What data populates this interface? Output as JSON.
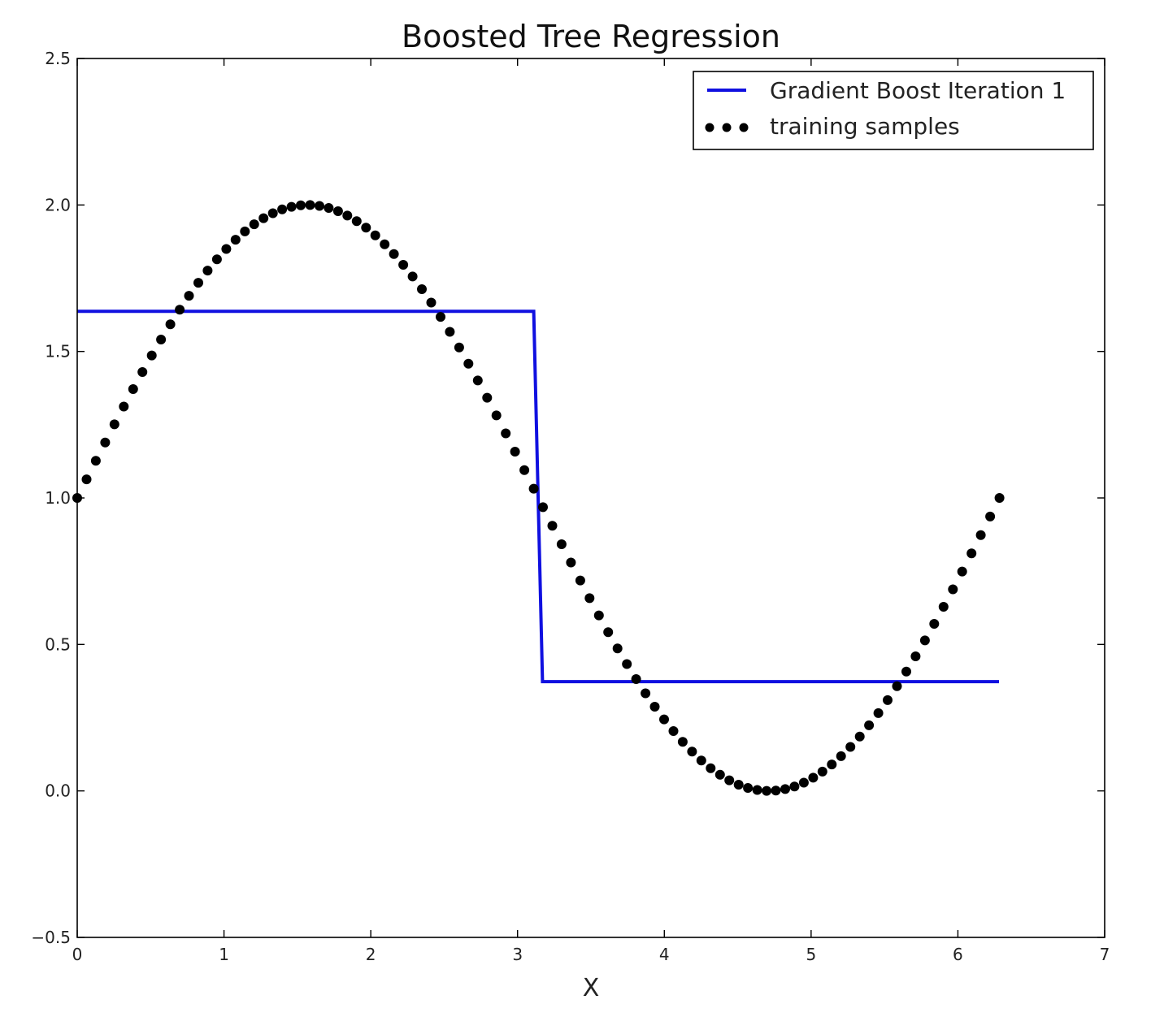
{
  "chart_data": {
    "type": "line",
    "title": "Boosted Tree Regression",
    "xlabel": "X",
    "ylabel": "",
    "xlim": [
      0,
      7
    ],
    "ylim": [
      -0.5,
      2.5
    ],
    "xticks": [
      0,
      1,
      2,
      3,
      4,
      5,
      6,
      7
    ],
    "xtick_labels": [
      "0",
      "1",
      "2",
      "3",
      "4",
      "5",
      "6",
      "7"
    ],
    "yticks": [
      -0.5,
      0.0,
      0.5,
      1.0,
      1.5,
      2.0,
      2.5
    ],
    "ytick_labels": [
      "−0.5",
      "0.0",
      "0.5",
      "1.0",
      "1.5",
      "2.0",
      "2.5"
    ],
    "grid": false,
    "legend_position": "top-right",
    "series": [
      {
        "name": "Gradient Boost Iteration 1",
        "kind": "line",
        "color": "#1010e0",
        "x": [
          0,
          3.11,
          3.17,
          6.28
        ],
        "y": [
          1.637,
          1.637,
          0.373,
          0.373
        ]
      },
      {
        "name": "training samples",
        "kind": "scatter",
        "color": "#000000",
        "x_start": 0,
        "x_end": 6.2832,
        "count": 100,
        "function": "1 + sin(x)"
      }
    ]
  }
}
